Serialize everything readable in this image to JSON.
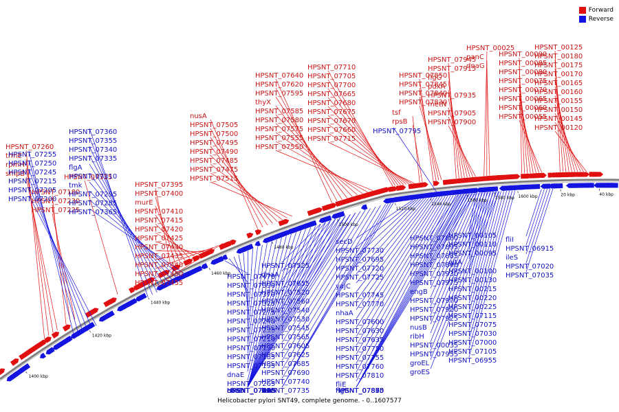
{
  "title": "Helicobacter pylori SNT49, complete genome. - 0..1607577",
  "legend": {
    "forward_label": "Forward",
    "reverse_label": "Reverse",
    "forward_color": "#e01010",
    "reverse_color": "#1414e0"
  },
  "scale_ticks": [
    "1400 kbp",
    "1420 kbp",
    "1440 kbp",
    "1460 kbp",
    "1480 kbp",
    "1500 kbp",
    "1520 kbp",
    "1540 kbp",
    "1560 kbp",
    "1580 kbp",
    "1600 kbp",
    "20 kbp",
    "40 kbp"
  ],
  "forward_labels": [
    "HPSNT_07260",
    "trmE",
    "rpmH",
    "smpB",
    "HPSNT_07180",
    "HPSNT_07230",
    "HPSNT_07225",
    "HPSNT_07315",
    "HPSNT_07395",
    "HPSNT_07400",
    "murE",
    "HPSNT_07410",
    "HPSNT_07415",
    "HPSNT_07420",
    "HPSNT_07425",
    "HPSNT_07430",
    "HPSNT_07435",
    "HPSNT_07440",
    "HPSNT_07450",
    "HPSNT_07455",
    "nusA",
    "HPSNT_07505",
    "HPSNT_07500",
    "HPSNT_07495",
    "HPSNT_07490",
    "HPSNT_07485",
    "HPSNT_07475",
    "HPSNT_07515",
    "HPSNT_07640",
    "HPSNT_07620",
    "HPSNT_07595",
    "thyX",
    "HPSNT_07585",
    "HPSNT_07580",
    "HPSNT_07575",
    "HPSNT_07555",
    "HPSNT_07550",
    "HPSNT_07710",
    "HPSNT_07705",
    "HPSNT_07700",
    "HPSNT_07665",
    "HPSNT_07680",
    "HPSNT_07675",
    "HPSNT_07670",
    "HPSNT_07660",
    "HPSNT_07715",
    "tsf",
    "rpsB",
    "HPSNT_07850",
    "HPSNT_07845",
    "HPSNT_07840",
    "HPSNT_07830",
    "HPSNT_07945",
    "HPSNT_07915",
    "flgG",
    "pdxA",
    "HPSNT_07935",
    "metN",
    "HPSNT_07905",
    "HPSNT_07900",
    "HPSNT_00025",
    "panC",
    "dnaG",
    "HPSNT_00090",
    "HPSNT_00085",
    "HPSNT_00080",
    "HPSNT_00075",
    "HPSNT_00070",
    "HPSNT_00065",
    "HPSNT_00060",
    "HPSNT_00055",
    "HPSNT_00125",
    "HPSNT_00180",
    "HPSNT_00175",
    "HPSNT_00170",
    "HPSNT_00165",
    "HPSNT_00160",
    "HPSNT_00155",
    "HPSNT_00150",
    "HPSNT_00145",
    "HPSNT_00120"
  ],
  "reverse_labels": [
    "HPSNT_07360",
    "HPSNT_07355",
    "HPSNT_07340",
    "HPSNT_07335",
    "flgA",
    "HPSNT_07310",
    "tmk",
    "HPSNT_07295",
    "HPSNT_07285",
    "HPSNT_07365",
    "HPSNT_07255",
    "HPSNT_07250",
    "HPSNT_07245",
    "HPSNT_07215",
    "HPSNT_07205",
    "HPSNT_07200",
    "HPSNT_07795",
    "HPSNT_07470",
    "HPSNT_07390",
    "HPSNT_07370",
    "HPSNT_07325",
    "HPSNT_07275",
    "HPSNT_07240",
    "HPSNT_07235",
    "HPSNT_07210",
    "HPSNT_07190",
    "HPSNT_07185",
    "HPSNT_07195",
    "dnaE",
    "HPSNT_07265",
    "coaD",
    "HPSNT_07270",
    "ubiE",
    "HPSNT_07280",
    "HPSNT_07290",
    "HPSNT_07330",
    "HPSNT_07375",
    "HPSNT_07345",
    "HPSNT_07445",
    "HPSNT_07380",
    "HPSNT_07385",
    "HPSNT_07465",
    "HPSNT_07480",
    "HPSNT_07460",
    "HPSNT_07535",
    "HPSNT_07525",
    "dnaA",
    "HPSNT_07655",
    "HPSNT_07520",
    "HPSNT_07560",
    "HPSNT_07540",
    "HPSNT_07530",
    "HPSNT_07545",
    "HPSNT_07565",
    "HPSNT_07605",
    "HPSNT_07625",
    "HPSNT_07685",
    "HPSNT_07690",
    "HPSNT_07740",
    "leuS",
    "HPSNT_07735",
    "secF",
    "secD",
    "HPSNT_07730",
    "HPSNT_07695",
    "HPSNT_07720",
    "HPSNT_07725",
    "yajC",
    "HPSNT_07745",
    "HPSNT_07770",
    "nhaA",
    "HPSNT_07600",
    "HPSNT_07630",
    "HPSNT_07635",
    "HPSNT_07750",
    "HPSNT_07755",
    "HPSNT_07760",
    "HPSNT_07810",
    "fliE",
    "flgC",
    "flgB",
    "HPSNT_07835",
    "HPSNT_07855",
    "HPSNT_07860",
    "HPSNT_07870",
    "HPSNT_07875",
    "HPSNT_07880",
    "HPSNT_07895",
    "HPSNT_07885",
    "HPSNT_07890",
    "HPSNT_07930",
    "HPSNT_07975",
    "engB",
    "HPSNT_07970",
    "HPSNT_07920",
    "HPSNT_07925",
    "nusB",
    "ribH",
    "HPSNT_00035",
    "HPSNT_07955",
    "groEL",
    "groES",
    "HPSNT_00105",
    "HPSNT_00110",
    "HPSNT_00095",
    "gltA",
    "HPSNT_00100",
    "HPSNT_00130",
    "HPSNT_00215",
    "HPSNT_00220",
    "HPSNT_00225",
    "HPSNT_07115",
    "HPSNT_07075",
    "HPSNT_07030",
    "HPSNT_07000",
    "HPSNT_07105",
    "HPSNT_06955",
    "fliI",
    "HPSNT_06915",
    "ileS",
    "HPSNT_07020",
    "HPSNT_07035"
  ]
}
